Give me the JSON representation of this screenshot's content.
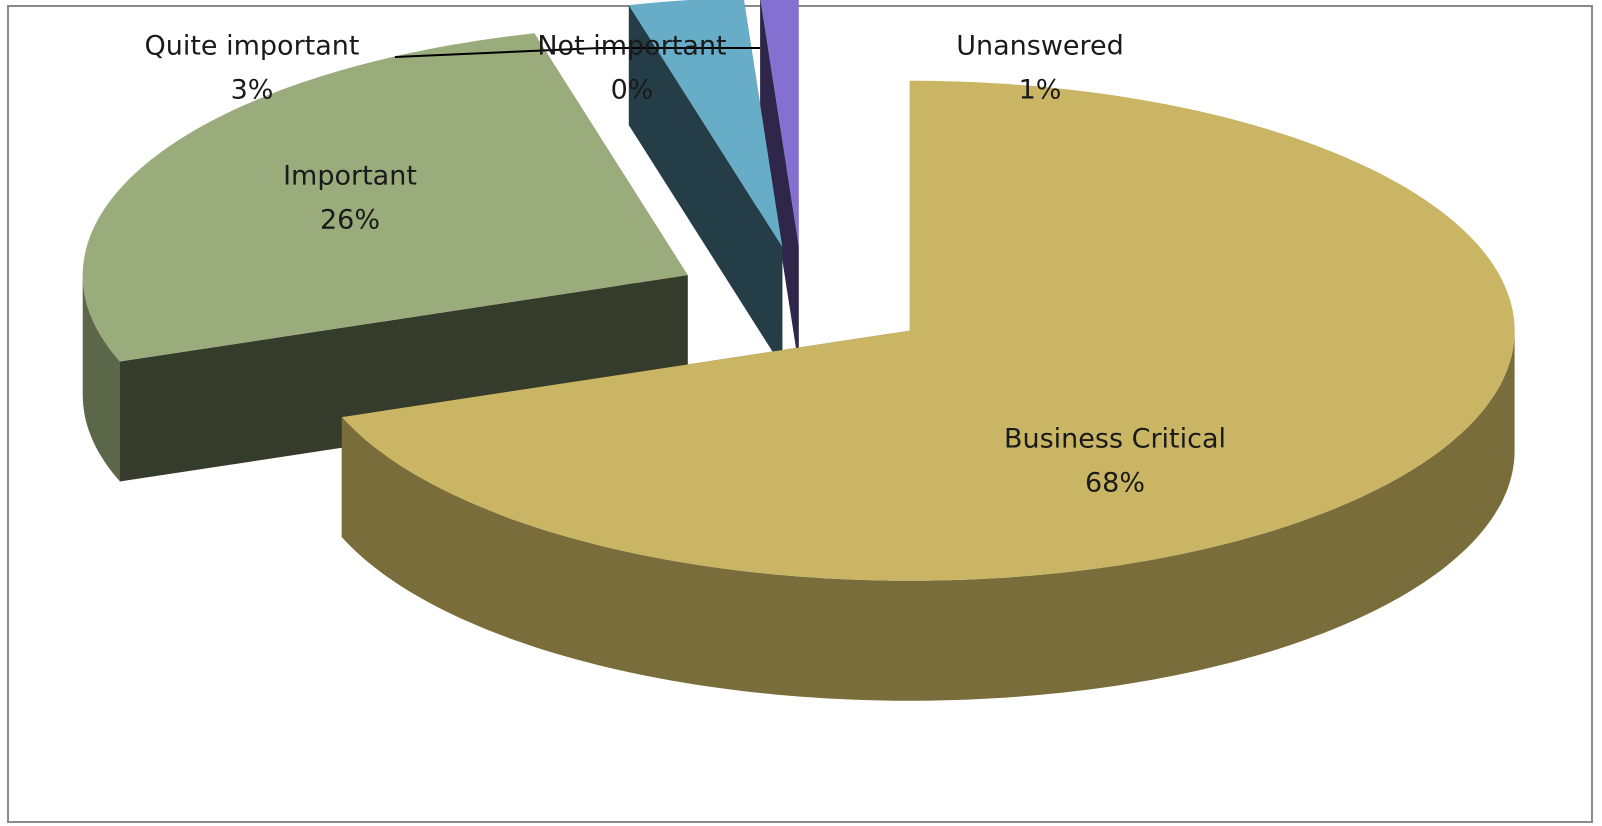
{
  "chart_data": {
    "type": "pie3d",
    "categories": [
      "Business Critical",
      "Important",
      "Quite important",
      "Not important",
      "Unanswered"
    ],
    "values": [
      68,
      26,
      3,
      0,
      1
    ],
    "value_labels": [
      "68%",
      "26%",
      "3%",
      "0%",
      "1%"
    ],
    "colors": [
      "#c9b564",
      "#9aab7c",
      "#68adc8",
      "#30346e",
      "#8470d0"
    ]
  }
}
